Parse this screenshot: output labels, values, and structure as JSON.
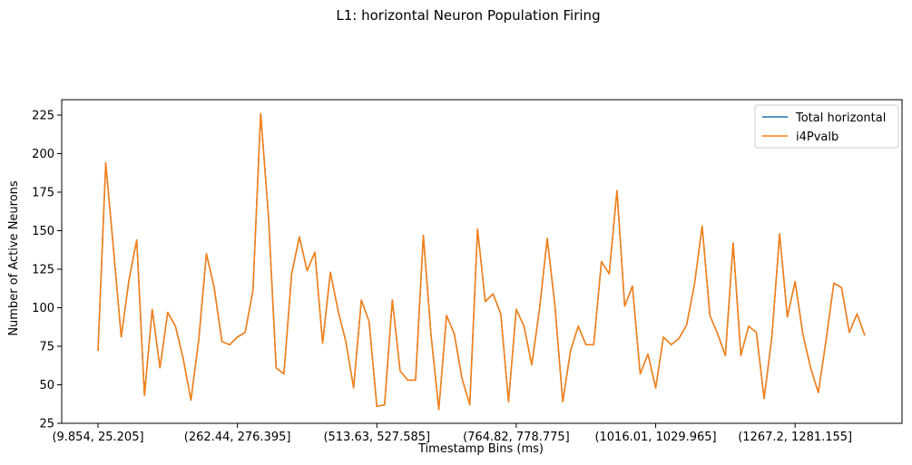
{
  "chart_data": {
    "type": "line",
    "title": "L1: horizontal Neuron Population Firing",
    "xlabel": "Timestamp Bins (ms)",
    "ylabel": "Number of Active Neurons",
    "ylim": [
      25,
      235
    ],
    "yticks": [
      25,
      50,
      75,
      100,
      125,
      150,
      175,
      200,
      225
    ],
    "xtick_labels": [
      "(9.854, 25.205]",
      "(262.44, 276.395]",
      "(513.63, 527.585]",
      "(764.82, 778.775]",
      "(1016.01, 1029.965]",
      "(1267.2, 1281.155]"
    ],
    "xtick_indices": [
      0,
      18,
      36,
      54,
      72,
      90
    ],
    "grid": false,
    "legend_position": "top-right",
    "series": [
      {
        "name": "Total horizontal",
        "color": "#1f77b4",
        "values": [
          72,
          194,
          138,
          81,
          118,
          144,
          43,
          99,
          61,
          97,
          88,
          67,
          40,
          79,
          135,
          113,
          78,
          76,
          81,
          84,
          111,
          226,
          160,
          61,
          57,
          122,
          146,
          124,
          136,
          77,
          123,
          98,
          78,
          48,
          105,
          91,
          36,
          37,
          105,
          59,
          53,
          53,
          147,
          82,
          34,
          95,
          83,
          54,
          37,
          151,
          104,
          109,
          96,
          39,
          99,
          88,
          63,
          99,
          145,
          101,
          39,
          72,
          88,
          76,
          76,
          130,
          122,
          176,
          101,
          114,
          57,
          70,
          48,
          81,
          76,
          80,
          89,
          115,
          153,
          95,
          83,
          69,
          142,
          69,
          88,
          84,
          41,
          81,
          148,
          94,
          117,
          83,
          61,
          45,
          79,
          116,
          113,
          84,
          96,
          82
        ]
      },
      {
        "name": "i4Pvalb",
        "color": "#ff7f0e",
        "values": [
          72,
          194,
          138,
          81,
          118,
          144,
          43,
          99,
          61,
          97,
          88,
          67,
          40,
          79,
          135,
          113,
          78,
          76,
          81,
          84,
          111,
          226,
          160,
          61,
          57,
          122,
          146,
          124,
          136,
          77,
          123,
          98,
          78,
          48,
          105,
          91,
          36,
          37,
          105,
          59,
          53,
          53,
          147,
          82,
          34,
          95,
          83,
          54,
          37,
          151,
          104,
          109,
          96,
          39,
          99,
          88,
          63,
          99,
          145,
          101,
          39,
          72,
          88,
          76,
          76,
          130,
          122,
          176,
          101,
          114,
          57,
          70,
          48,
          81,
          76,
          80,
          89,
          115,
          153,
          95,
          83,
          69,
          142,
          69,
          88,
          84,
          41,
          81,
          148,
          94,
          117,
          83,
          61,
          45,
          79,
          116,
          113,
          84,
          96,
          82
        ]
      }
    ]
  }
}
